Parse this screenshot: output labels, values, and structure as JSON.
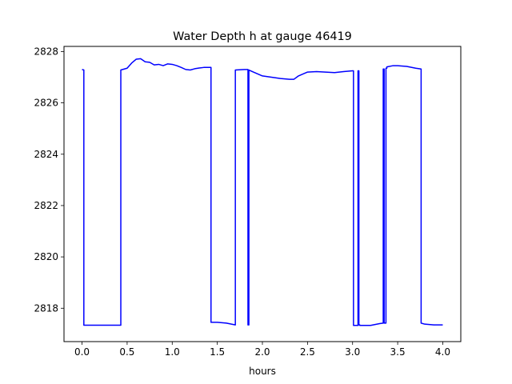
{
  "chart_data": {
    "type": "line",
    "title": "Water Depth h at gauge 46419",
    "xlabel": "hours",
    "ylabel": "",
    "xlim": [
      -0.2,
      4.2
    ],
    "ylim": [
      2816.7,
      2828.2
    ],
    "xticks": [
      0.0,
      0.5,
      1.0,
      1.5,
      2.0,
      2.5,
      3.0,
      3.5,
      4.0
    ],
    "xtick_labels": [
      "0.0",
      "0.5",
      "1.0",
      "1.5",
      "2.0",
      "2.5",
      "3.0",
      "3.5",
      "4.0"
    ],
    "yticks": [
      2818,
      2820,
      2822,
      2824,
      2826,
      2828
    ],
    "ytick_labels": [
      "2818",
      "2820",
      "2822",
      "2824",
      "2826",
      "2828"
    ],
    "grid": false,
    "series": [
      {
        "color": "#0000ff",
        "x": [
          0.0,
          0.02,
          0.02,
          0.43,
          0.43,
          0.5,
          0.55,
          0.6,
          0.65,
          0.7,
          0.75,
          0.8,
          0.85,
          0.9,
          0.95,
          1.0,
          1.05,
          1.1,
          1.15,
          1.2,
          1.25,
          1.3,
          1.35,
          1.43,
          1.43,
          1.5,
          1.6,
          1.7,
          1.7,
          1.8,
          1.84,
          1.84,
          1.85,
          1.85,
          1.9,
          2.0,
          2.1,
          2.2,
          2.3,
          2.35,
          2.4,
          2.5,
          2.6,
          2.7,
          2.8,
          2.9,
          3.0,
          3.01,
          3.01,
          3.06,
          3.06,
          3.07,
          3.07,
          3.08,
          3.08,
          3.1,
          3.2,
          3.3,
          3.34,
          3.34,
          3.35,
          3.35,
          3.37,
          3.37,
          3.38,
          3.38,
          3.45,
          3.5,
          3.6,
          3.7,
          3.76,
          3.76,
          3.8,
          3.9,
          4.0
        ],
        "y": [
          2827.3,
          2827.28,
          2817.34,
          2817.34,
          2827.28,
          2827.35,
          2827.55,
          2827.7,
          2827.72,
          2827.6,
          2827.58,
          2827.48,
          2827.5,
          2827.45,
          2827.52,
          2827.5,
          2827.45,
          2827.38,
          2827.3,
          2827.28,
          2827.33,
          2827.36,
          2827.38,
          2827.38,
          2817.45,
          2817.45,
          2817.42,
          2817.35,
          2827.28,
          2827.3,
          2827.3,
          2817.35,
          2817.35,
          2827.28,
          2827.2,
          2827.05,
          2827.0,
          2826.95,
          2826.92,
          2826.92,
          2827.05,
          2827.2,
          2827.22,
          2827.2,
          2827.18,
          2827.22,
          2827.25,
          2827.25,
          2817.33,
          2817.33,
          2827.25,
          2827.25,
          2817.35,
          2817.35,
          2817.33,
          2817.33,
          2817.33,
          2817.4,
          2817.42,
          2827.32,
          2827.32,
          2817.42,
          2817.42,
          2827.35,
          2827.35,
          2827.4,
          2827.45,
          2827.45,
          2827.42,
          2827.35,
          2827.32,
          2817.42,
          2817.38,
          2817.35,
          2817.35
        ]
      }
    ]
  }
}
